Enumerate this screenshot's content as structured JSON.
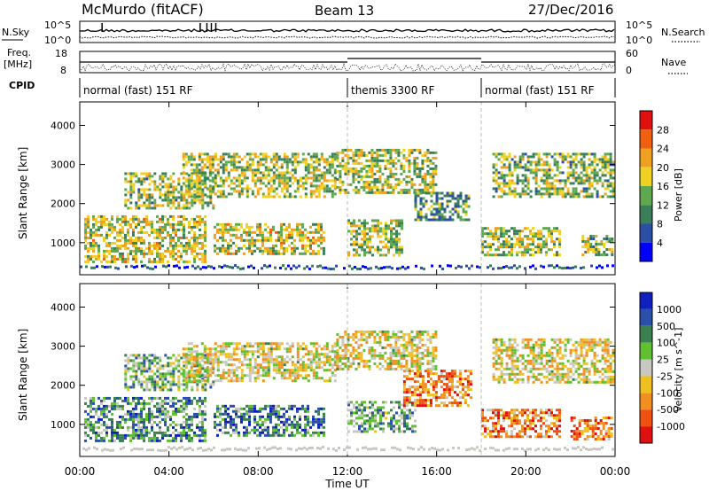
{
  "header": {
    "station": "McMurdo (fitACF)",
    "beam": "Beam 13",
    "date": "27/Dec/2016"
  },
  "noise_panel": {
    "left_label": "N.Sky",
    "right_label": "N.Search",
    "left_ticks": [
      "10^5",
      "10^0"
    ],
    "right_ticks": [
      "10^5",
      "10^0"
    ]
  },
  "freq_panel": {
    "left_label_line1": "Freq.",
    "left_label_line2": "[MHz]",
    "right_label": "Nave",
    "left_ticks": [
      "18",
      "8"
    ],
    "right_ticks": [
      "60",
      "0"
    ]
  },
  "cpid": {
    "label": "CPID",
    "segments": [
      {
        "name": "normal (fast) 151 RF",
        "start_hour": 0
      },
      {
        "name": "themis 3300 RF",
        "start_hour": 12
      },
      {
        "name": "normal (fast) 151 RF",
        "start_hour": 18
      }
    ]
  },
  "time_axis": {
    "label": "Time UT",
    "ticks": [
      "00:00",
      "04:00",
      "08:00",
      "12:00",
      "16:00",
      "20:00",
      "00:00"
    ]
  },
  "colors": {
    "power": [
      "#0000ff",
      "#2c4fa6",
      "#3a7f5a",
      "#5fa84f",
      "#f0d020",
      "#f0a020",
      "#f06010",
      "#e01010"
    ],
    "velocity": [
      "#e01010",
      "#f05010",
      "#f09020",
      "#f0c020",
      "#c8c8c0",
      "#60c030",
      "#3a8050",
      "#2a50a8",
      "#1020c0"
    ]
  },
  "chart_data": [
    {
      "type": "heatmap",
      "ylabel": "Slant Range [km]",
      "ylim": [
        180,
        4600
      ],
      "yticks": [
        1000,
        2000,
        3000,
        4000
      ],
      "xlim_hours": [
        0,
        24
      ],
      "colorbar_label": "Power [dB]",
      "colorbar_ticks": [
        "4",
        "8",
        "12",
        "16",
        "20",
        "24",
        "28"
      ],
      "echo_regions": [
        {
          "t0": 0.2,
          "t1": 5.6,
          "r0": 500,
          "r1": 1700,
          "level": 0.55
        },
        {
          "t0": 2.0,
          "t1": 6.0,
          "r0": 1900,
          "r1": 2800,
          "level": 0.45
        },
        {
          "t0": 4.6,
          "t1": 11.5,
          "r0": 2200,
          "r1": 3300,
          "level": 0.5
        },
        {
          "t0": 6.0,
          "t1": 11.0,
          "r0": 700,
          "r1": 1500,
          "level": 0.55
        },
        {
          "t0": 11.5,
          "t1": 16.0,
          "r0": 2300,
          "r1": 3400,
          "level": 0.5
        },
        {
          "t0": 12.0,
          "t1": 14.5,
          "r0": 700,
          "r1": 1600,
          "level": 0.5
        },
        {
          "t0": 15.0,
          "t1": 17.5,
          "r0": 1600,
          "r1": 2300,
          "level": 0.35
        },
        {
          "t0": 18.0,
          "t1": 21.5,
          "r0": 700,
          "r1": 1400,
          "level": 0.5
        },
        {
          "t0": 18.5,
          "t1": 23.9,
          "r0": 2200,
          "r1": 3300,
          "level": 0.45
        },
        {
          "t0": 22.5,
          "t1": 23.9,
          "r0": 700,
          "r1": 1200,
          "level": 0.45
        }
      ]
    },
    {
      "type": "heatmap",
      "ylabel": "Slant Range [km]",
      "ylim": [
        180,
        4600
      ],
      "yticks": [
        1000,
        2000,
        3000,
        4000
      ],
      "xlim_hours": [
        0,
        24
      ],
      "colorbar_label": "Velocity [m s^-1]",
      "colorbar_ticks": [
        "1000",
        "500",
        "100",
        "25",
        "-25",
        "-100",
        "-500",
        "-1000"
      ],
      "echo_regions": [
        {
          "t0": 0.2,
          "t1": 5.6,
          "r0": 600,
          "r1": 1700,
          "level": 0.7
        },
        {
          "t0": 2.0,
          "t1": 6.0,
          "r0": 1900,
          "r1": 2800,
          "level": 0.6
        },
        {
          "t0": 4.6,
          "t1": 11.5,
          "r0": 2100,
          "r1": 3100,
          "level": 0.45
        },
        {
          "t0": 6.0,
          "t1": 11.0,
          "r0": 700,
          "r1": 1500,
          "level": 0.75
        },
        {
          "t0": 11.5,
          "t1": 16.0,
          "r0": 2400,
          "r1": 3400,
          "level": 0.45
        },
        {
          "t0": 12.0,
          "t1": 15.0,
          "r0": 800,
          "r1": 1600,
          "level": 0.65
        },
        {
          "t0": 14.5,
          "t1": 17.5,
          "r0": 1500,
          "r1": 2400,
          "level": 0.25
        },
        {
          "t0": 18.0,
          "t1": 21.5,
          "r0": 700,
          "r1": 1400,
          "level": 0.25
        },
        {
          "t0": 18.5,
          "t1": 23.9,
          "r0": 2100,
          "r1": 3200,
          "level": 0.45
        },
        {
          "t0": 22.0,
          "t1": 23.9,
          "r0": 600,
          "r1": 1200,
          "level": 0.25
        }
      ]
    }
  ]
}
